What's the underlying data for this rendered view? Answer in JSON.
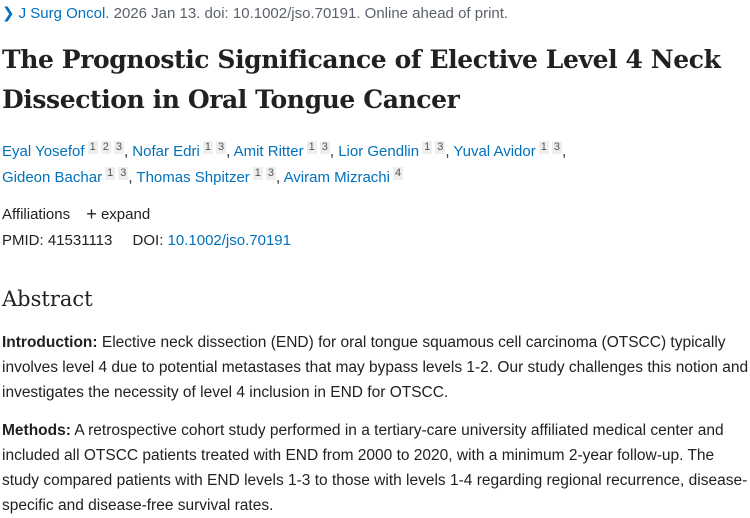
{
  "citation": {
    "journal": "J Surg Oncol.",
    "rest": " 2026 Jan 13. doi: 10.1002/jso.70191. Online ahead of print."
  },
  "title": "The Prognostic Significance of Elective Level 4 Neck Dissection in Oral Tongue Cancer",
  "authors": [
    {
      "name": "Eyal Yosefof",
      "aff": [
        "1",
        "2",
        "3"
      ]
    },
    {
      "name": "Nofar Edri",
      "aff": [
        "1",
        "3"
      ]
    },
    {
      "name": "Amit Ritter",
      "aff": [
        "1",
        "3"
      ]
    },
    {
      "name": "Lior Gendlin",
      "aff": [
        "1",
        "3"
      ]
    },
    {
      "name": "Yuval Avidor",
      "aff": [
        "1",
        "3"
      ]
    },
    {
      "name": "Gideon Bachar",
      "aff": [
        "1",
        "3"
      ]
    },
    {
      "name": "Thomas Shpitzer",
      "aff": [
        "1",
        "3"
      ]
    },
    {
      "name": "Aviram Mizrachi",
      "aff": [
        "4"
      ]
    }
  ],
  "affiliations": {
    "label": "Affiliations",
    "expand": "expand"
  },
  "ids": {
    "pmid_label": "PMID:",
    "pmid": "41531113",
    "doi_label": "DOI:",
    "doi": "10.1002/jso.70191"
  },
  "abstract": {
    "heading": "Abstract",
    "intro_label": "Introduction:",
    "intro": " Elective neck dissection (END) for oral tongue squamous cell carcinoma (OTSCC) typically involves level 4 due to potential metastases that may bypass levels 1-2. Our study challenges this notion and investigates the necessity of level 4 inclusion in END for OTSCC.",
    "methods_label": "Methods:",
    "methods": " A retrospective cohort study performed in a tertiary-care university affiliated medical center and included all OTSCC patients treated with END from 2000 to 2020, with a minimum 2-year follow-up. The study compared patients with END levels 1-3 to those with levels 1-4 regarding regional recurrence, disease-specific and disease-free survival rates."
  }
}
